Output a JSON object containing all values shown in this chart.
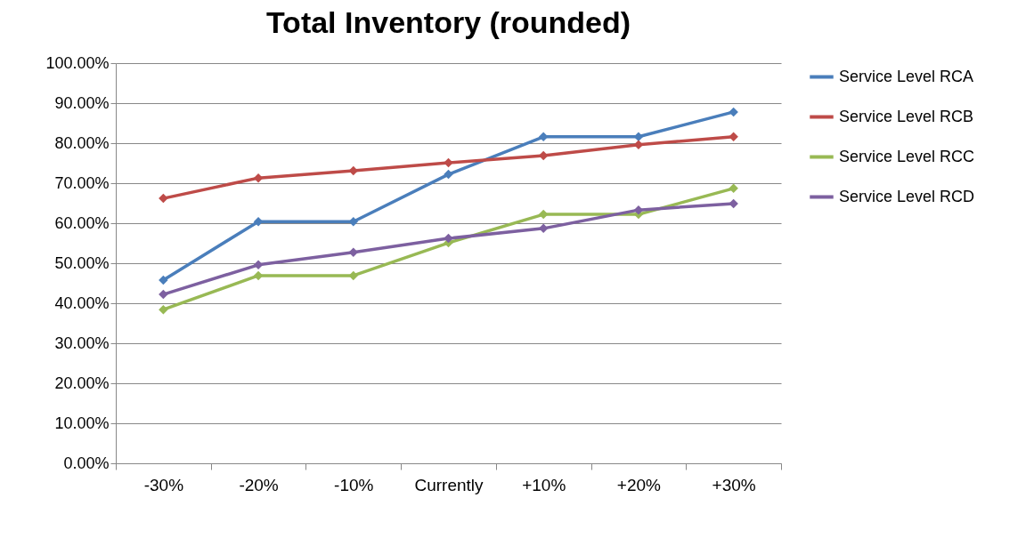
{
  "chart_data": {
    "type": "line",
    "title": "Total Inventory (rounded)",
    "categories": [
      "-30%",
      "-20%",
      "-10%",
      "Currently",
      "+10%",
      "+20%",
      "+30%"
    ],
    "series": [
      {
        "name": "Service Level RCA",
        "color": "#4a7ebb",
        "values": [
          45.8,
          60.4,
          60.4,
          72.2,
          81.6,
          81.6,
          87.8
        ]
      },
      {
        "name": "Service Level RCB",
        "color": "#be4b48",
        "values": [
          66.2,
          71.3,
          73.1,
          75.1,
          76.9,
          79.6,
          81.6
        ]
      },
      {
        "name": "Service Level RCC",
        "color": "#98b954",
        "values": [
          38.4,
          46.9,
          46.9,
          55.1,
          62.2,
          62.2,
          68.7
        ]
      },
      {
        "name": "Service Level RCD",
        "color": "#7d60a0",
        "values": [
          42.2,
          49.6,
          52.7,
          56.2,
          58.7,
          63.3,
          64.9
        ]
      }
    ],
    "ylim": [
      0,
      100
    ],
    "yticks": [
      {
        "value": 0,
        "label": "0.00%"
      },
      {
        "value": 10,
        "label": "10.00%"
      },
      {
        "value": 20,
        "label": "20.00%"
      },
      {
        "value": 30,
        "label": "30.00%"
      },
      {
        "value": 40,
        "label": "40.00%"
      },
      {
        "value": 50,
        "label": "50.00%"
      },
      {
        "value": 60,
        "label": "60.00%"
      },
      {
        "value": 70,
        "label": "70.00%"
      },
      {
        "value": 80,
        "label": "80.00%"
      },
      {
        "value": 90,
        "label": "90.00%"
      },
      {
        "value": 100,
        "label": "100.00%"
      }
    ],
    "grid": "y",
    "legend": "right",
    "marker": "diamond",
    "line_style": "solid"
  }
}
